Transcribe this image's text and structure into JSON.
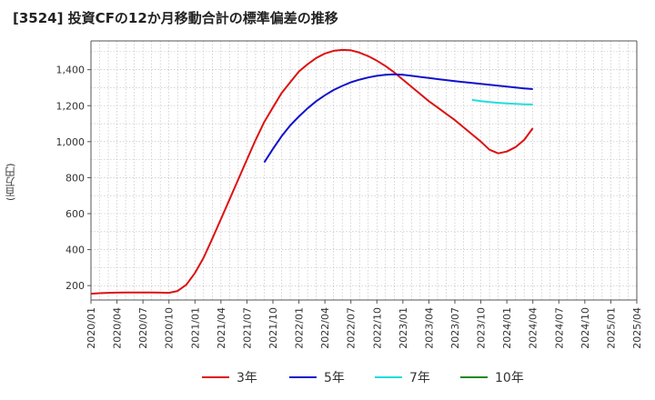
{
  "chart_data": {
    "type": "line",
    "title": "[3524]  投資CFの12か月移動合計の標準偏差の推移",
    "ylabel": "(百万円)",
    "xlabel": "",
    "ylim": [
      120,
      1560
    ],
    "yticks": [
      200,
      400,
      600,
      800,
      1000,
      1200,
      1400
    ],
    "ytick_labels": [
      "200",
      "400",
      "600",
      "800",
      "1,000",
      "1,200",
      "1,400"
    ],
    "xticks": [
      "2020/01",
      "2020/04",
      "2020/07",
      "2020/10",
      "2021/01",
      "2021/04",
      "2021/07",
      "2021/10",
      "2022/01",
      "2022/04",
      "2022/07",
      "2022/10",
      "2023/01",
      "2023/04",
      "2023/07",
      "2023/10",
      "2024/01",
      "2024/04",
      "2024/07",
      "2024/10",
      "2025/01",
      "2025/04"
    ],
    "grid": true,
    "legend_position": "bottom",
    "series": [
      {
        "name": "3年",
        "color": "#dd1111",
        "x": [
          "2020/01",
          "2020/02",
          "2020/03",
          "2020/04",
          "2020/05",
          "2020/06",
          "2020/07",
          "2020/08",
          "2020/09",
          "2020/10",
          "2020/11",
          "2020/12",
          "2021/01",
          "2021/02",
          "2021/03",
          "2021/04",
          "2021/05",
          "2021/06",
          "2021/07",
          "2021/08",
          "2021/09",
          "2021/10",
          "2021/11",
          "2021/12",
          "2022/01",
          "2022/02",
          "2022/03",
          "2022/04",
          "2022/05",
          "2022/06",
          "2022/07",
          "2022/08",
          "2022/09",
          "2022/10",
          "2022/11",
          "2022/12",
          "2023/01",
          "2023/02",
          "2023/03",
          "2023/04",
          "2023/05",
          "2023/06",
          "2023/07",
          "2023/08",
          "2023/09",
          "2023/10",
          "2023/11",
          "2023/12",
          "2024/01",
          "2024/02",
          "2024/03",
          "2024/04"
        ],
        "values": [
          155,
          158,
          160,
          161,
          162,
          162,
          162,
          162,
          161,
          160,
          170,
          205,
          270,
          355,
          460,
          570,
          680,
          790,
          900,
          1010,
          1110,
          1190,
          1270,
          1330,
          1390,
          1430,
          1465,
          1490,
          1505,
          1510,
          1508,
          1495,
          1475,
          1450,
          1420,
          1385,
          1345,
          1305,
          1265,
          1225,
          1190,
          1155,
          1120,
          1080,
          1040,
          1000,
          955,
          935,
          945,
          970,
          1010,
          1075
        ]
      },
      {
        "name": "5年",
        "color": "#1111cc",
        "x": [
          "2021/09",
          "2021/10",
          "2021/11",
          "2021/12",
          "2022/01",
          "2022/02",
          "2022/03",
          "2022/04",
          "2022/05",
          "2022/06",
          "2022/07",
          "2022/08",
          "2022/09",
          "2022/10",
          "2022/11",
          "2022/12",
          "2023/01",
          "2023/02",
          "2023/03",
          "2023/04",
          "2023/05",
          "2023/06",
          "2023/07",
          "2023/08",
          "2023/09",
          "2023/10",
          "2023/11",
          "2023/12",
          "2024/01",
          "2024/02",
          "2024/03",
          "2024/04"
        ],
        "values": [
          885,
          960,
          1030,
          1090,
          1140,
          1185,
          1225,
          1258,
          1287,
          1310,
          1330,
          1345,
          1357,
          1366,
          1372,
          1374,
          1372,
          1366,
          1360,
          1354,
          1348,
          1342,
          1336,
          1331,
          1326,
          1321,
          1316,
          1311,
          1306,
          1301,
          1296,
          1292
        ]
      },
      {
        "name": "7年",
        "color": "#22dddd",
        "x": [
          "2023/09",
          "2023/10",
          "2023/11",
          "2023/12",
          "2024/01",
          "2024/02",
          "2024/03",
          "2024/04"
        ],
        "values": [
          1232,
          1225,
          1220,
          1216,
          1213,
          1210,
          1208,
          1207
        ]
      },
      {
        "name": "10年",
        "color": "#228822",
        "x": [],
        "values": []
      }
    ]
  }
}
